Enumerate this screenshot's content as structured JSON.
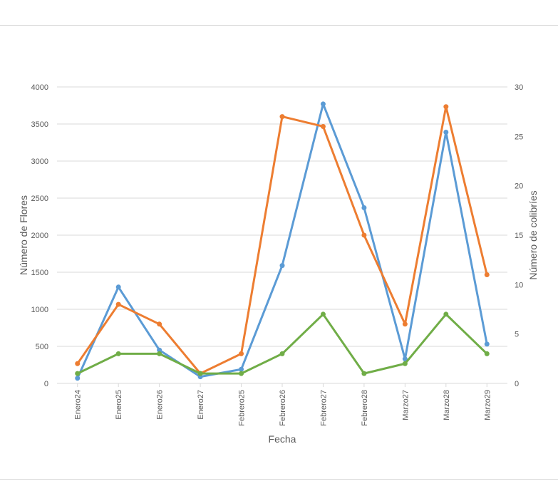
{
  "chart_data": {
    "type": "line",
    "title": "",
    "xlabel": "Fecha",
    "ylabel": "Número de Flores",
    "y2label": "Número de colibríes",
    "categories": [
      "Enero24",
      "Enero25",
      "Enero26",
      "Enero27",
      "Febrero25",
      "Febrero26",
      "Febrero27",
      "Febrero28",
      "Marzo27",
      "Marzo28",
      "Marzo29"
    ],
    "ylim": [
      0,
      4000
    ],
    "yticks": [
      "0",
      "500",
      "1000",
      "1500",
      "2000",
      "2500",
      "3000",
      "3500",
      "4000"
    ],
    "y2lim": [
      0,
      30
    ],
    "y2ticks": [
      "0",
      "5",
      "10",
      "15",
      "20",
      "25",
      "30"
    ],
    "grid": true,
    "legend": "none",
    "series": [
      {
        "axis": "left",
        "color": "#5b9bd5",
        "values": [
          70,
          1300,
          450,
          90,
          190,
          1590,
          3770,
          2370,
          330,
          3390,
          530
        ]
      },
      {
        "axis": "right",
        "color": "#ed7d31",
        "values": [
          2,
          8,
          6,
          1,
          3,
          27,
          26,
          15,
          6,
          28,
          11
        ]
      },
      {
        "axis": "right",
        "color": "#70ad47",
        "values": [
          1,
          3,
          3,
          1,
          1,
          3,
          7,
          1,
          2,
          7,
          3
        ]
      }
    ]
  }
}
